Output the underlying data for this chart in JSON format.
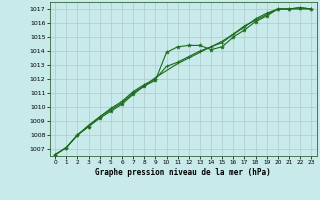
{
  "background_color": "#c8eaea",
  "grid_color": "#b0c8c8",
  "line_color": "#1a6b1a",
  "xlabel": "Graphe pression niveau de la mer (hPa)",
  "xlim": [
    -0.5,
    23.5
  ],
  "ylim": [
    1006.5,
    1017.5
  ],
  "yticks": [
    1007,
    1008,
    1009,
    1010,
    1011,
    1012,
    1013,
    1014,
    1015,
    1016,
    1017
  ],
  "xticks": [
    0,
    1,
    2,
    3,
    4,
    5,
    6,
    7,
    8,
    9,
    10,
    11,
    12,
    13,
    14,
    15,
    16,
    17,
    18,
    19,
    20,
    21,
    22,
    23
  ],
  "line1_x": [
    0,
    1,
    2,
    3,
    4,
    5,
    6,
    7,
    8,
    9,
    10,
    11,
    12,
    13,
    14,
    15,
    16,
    17,
    18,
    19,
    20,
    21,
    22,
    23
  ],
  "line1_y": [
    1006.6,
    1007.1,
    1008.0,
    1008.6,
    1009.2,
    1009.7,
    1010.2,
    1010.9,
    1011.5,
    1011.9,
    1013.9,
    1014.3,
    1014.4,
    1014.4,
    1014.1,
    1014.3,
    1015.0,
    1015.5,
    1016.1,
    1016.5,
    1017.0,
    1017.0,
    1017.1,
    1017.0
  ],
  "line2_x": [
    0,
    1,
    2,
    3,
    4,
    5,
    6,
    7,
    8,
    9,
    10,
    11,
    12,
    13,
    14,
    15,
    16,
    17,
    18,
    19,
    20,
    21,
    22,
    23
  ],
  "line2_y": [
    1006.6,
    1007.1,
    1008.0,
    1008.7,
    1009.3,
    1009.8,
    1010.3,
    1011.0,
    1011.5,
    1012.1,
    1012.6,
    1013.1,
    1013.5,
    1013.9,
    1014.3,
    1014.7,
    1015.2,
    1015.8,
    1016.2,
    1016.6,
    1017.0,
    1017.0,
    1017.0,
    1017.0
  ],
  "line3_x": [
    0,
    1,
    2,
    3,
    4,
    5,
    6,
    7,
    8,
    9,
    10,
    11,
    12,
    13,
    14,
    15,
    16,
    17,
    18,
    19,
    20,
    21,
    22,
    23
  ],
  "line3_y": [
    1006.6,
    1007.1,
    1008.0,
    1008.6,
    1009.3,
    1009.9,
    1010.4,
    1011.1,
    1011.6,
    1012.0,
    1012.9,
    1013.2,
    1013.6,
    1014.0,
    1014.3,
    1014.6,
    1015.2,
    1015.7,
    1016.3,
    1016.7,
    1017.0,
    1017.0,
    1017.1,
    1017.0
  ]
}
